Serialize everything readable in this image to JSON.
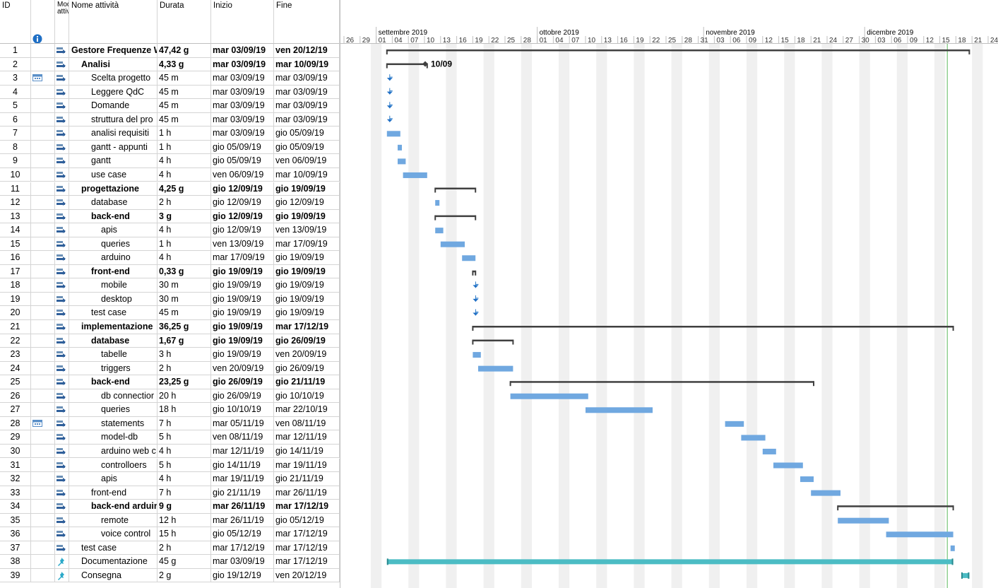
{
  "columns": {
    "id": "ID",
    "mode": "Mod attiv",
    "name": "Nome attività",
    "duration": "Durata",
    "start": "Inizio",
    "end": "Fine"
  },
  "timeline": {
    "months": [
      "settembre 2019",
      "ottobre 2019",
      "novembre 2019",
      "dicembre 2019"
    ],
    "ticks": [
      "26",
      "29",
      "01",
      "04",
      "07",
      "10",
      "13",
      "16",
      "19",
      "22",
      "25",
      "28",
      "01",
      "04",
      "07",
      "10",
      "13",
      "16",
      "19",
      "22",
      "25",
      "28",
      "31",
      "03",
      "06",
      "09",
      "12",
      "15",
      "18",
      "21",
      "24",
      "27",
      "30",
      "03",
      "06",
      "09",
      "12",
      "15",
      "18",
      "21",
      "24"
    ],
    "milestone_label": "10/09"
  },
  "colors": {
    "task_bar": "#70a8e0",
    "summary_bar": "#404040",
    "manual_bar": "#4cbcc4",
    "today_line": "#5cb85c",
    "weekend_shade": "#f0f0f0"
  },
  "tasks": [
    {
      "id": "1",
      "name": "Gestore Frequenze W",
      "dur": "47,42 g",
      "start": "mar 03/09/19",
      "end": "ven 20/12/19",
      "bold": true,
      "indent": 0,
      "icon": "auto-task-icon",
      "info": ""
    },
    {
      "id": "2",
      "name": "Analisi",
      "dur": "4,33 g",
      "start": "mar 03/09/19",
      "end": "mar 10/09/19",
      "bold": true,
      "indent": 1,
      "icon": "auto-task-icon",
      "info": ""
    },
    {
      "id": "3",
      "name": "Scelta progetto",
      "dur": "45 m",
      "start": "mar 03/09/19",
      "end": "mar 03/09/19",
      "bold": false,
      "indent": 2,
      "icon": "auto-task-icon",
      "info": "calendar-icon"
    },
    {
      "id": "4",
      "name": "Leggere QdC",
      "dur": "45 m",
      "start": "mar 03/09/19",
      "end": "mar 03/09/19",
      "bold": false,
      "indent": 2,
      "icon": "auto-task-icon",
      "info": ""
    },
    {
      "id": "5",
      "name": "Domande",
      "dur": "45 m",
      "start": "mar 03/09/19",
      "end": "mar 03/09/19",
      "bold": false,
      "indent": 2,
      "icon": "auto-task-icon",
      "info": ""
    },
    {
      "id": "6",
      "name": "struttura del pro",
      "dur": "45 m",
      "start": "mar 03/09/19",
      "end": "mar 03/09/19",
      "bold": false,
      "indent": 2,
      "icon": "auto-task-icon",
      "info": ""
    },
    {
      "id": "7",
      "name": "analisi requisiti",
      "dur": "1 h",
      "start": "mar 03/09/19",
      "end": "gio 05/09/19",
      "bold": false,
      "indent": 2,
      "icon": "auto-task-icon",
      "info": ""
    },
    {
      "id": "8",
      "name": "gantt - appunti",
      "dur": "1 h",
      "start": "gio 05/09/19",
      "end": "gio 05/09/19",
      "bold": false,
      "indent": 2,
      "icon": "auto-task-icon",
      "info": ""
    },
    {
      "id": "9",
      "name": "gantt",
      "dur": "4 h",
      "start": "gio 05/09/19",
      "end": "ven 06/09/19",
      "bold": false,
      "indent": 2,
      "icon": "auto-task-icon",
      "info": ""
    },
    {
      "id": "10",
      "name": "use case",
      "dur": "4 h",
      "start": "ven 06/09/19",
      "end": "mar 10/09/19",
      "bold": false,
      "indent": 2,
      "icon": "auto-task-icon",
      "info": ""
    },
    {
      "id": "11",
      "name": "progettazione",
      "dur": "4,25 g",
      "start": "gio 12/09/19",
      "end": "gio 19/09/19",
      "bold": true,
      "indent": 1,
      "icon": "auto-task-icon",
      "info": ""
    },
    {
      "id": "12",
      "name": "database",
      "dur": "2 h",
      "start": "gio 12/09/19",
      "end": "gio 12/09/19",
      "bold": false,
      "indent": 2,
      "icon": "auto-task-icon",
      "info": ""
    },
    {
      "id": "13",
      "name": "back-end",
      "dur": "3 g",
      "start": "gio 12/09/19",
      "end": "gio 19/09/19",
      "bold": true,
      "indent": 2,
      "icon": "auto-task-icon",
      "info": ""
    },
    {
      "id": "14",
      "name": "apis",
      "dur": "4 h",
      "start": "gio 12/09/19",
      "end": "ven 13/09/19",
      "bold": false,
      "indent": 3,
      "icon": "auto-task-icon",
      "info": ""
    },
    {
      "id": "15",
      "name": "queries",
      "dur": "1 h",
      "start": "ven 13/09/19",
      "end": "mar 17/09/19",
      "bold": false,
      "indent": 3,
      "icon": "auto-task-icon",
      "info": ""
    },
    {
      "id": "16",
      "name": "arduino",
      "dur": "4 h",
      "start": "mar 17/09/19",
      "end": "gio 19/09/19",
      "bold": false,
      "indent": 3,
      "icon": "auto-task-icon",
      "info": ""
    },
    {
      "id": "17",
      "name": "front-end",
      "dur": "0,33 g",
      "start": "gio 19/09/19",
      "end": "gio 19/09/19",
      "bold": true,
      "indent": 2,
      "icon": "auto-task-icon",
      "info": ""
    },
    {
      "id": "18",
      "name": "mobile",
      "dur": "30 m",
      "start": "gio 19/09/19",
      "end": "gio 19/09/19",
      "bold": false,
      "indent": 3,
      "icon": "auto-task-icon",
      "info": ""
    },
    {
      "id": "19",
      "name": "desktop",
      "dur": "30 m",
      "start": "gio 19/09/19",
      "end": "gio 19/09/19",
      "bold": false,
      "indent": 3,
      "icon": "auto-task-icon",
      "info": ""
    },
    {
      "id": "20",
      "name": "test case",
      "dur": "45 m",
      "start": "gio 19/09/19",
      "end": "gio 19/09/19",
      "bold": false,
      "indent": 2,
      "icon": "auto-task-icon",
      "info": ""
    },
    {
      "id": "21",
      "name": "implementazione",
      "dur": "36,25 g",
      "start": "gio 19/09/19",
      "end": "mar 17/12/19",
      "bold": true,
      "indent": 1,
      "icon": "auto-task-icon",
      "info": ""
    },
    {
      "id": "22",
      "name": "database",
      "dur": "1,67 g",
      "start": "gio 19/09/19",
      "end": "gio 26/09/19",
      "bold": true,
      "indent": 2,
      "icon": "auto-task-icon",
      "info": ""
    },
    {
      "id": "23",
      "name": "tabelle",
      "dur": "3 h",
      "start": "gio 19/09/19",
      "end": "ven 20/09/19",
      "bold": false,
      "indent": 3,
      "icon": "auto-task-icon",
      "info": ""
    },
    {
      "id": "24",
      "name": "triggers",
      "dur": "2 h",
      "start": "ven 20/09/19",
      "end": "gio 26/09/19",
      "bold": false,
      "indent": 3,
      "icon": "auto-task-icon",
      "info": ""
    },
    {
      "id": "25",
      "name": "back-end",
      "dur": "23,25 g",
      "start": "gio 26/09/19",
      "end": "gio 21/11/19",
      "bold": true,
      "indent": 2,
      "icon": "auto-task-icon",
      "info": ""
    },
    {
      "id": "26",
      "name": "db connectior",
      "dur": "20 h",
      "start": "gio 26/09/19",
      "end": "gio 10/10/19",
      "bold": false,
      "indent": 3,
      "icon": "auto-task-icon",
      "info": ""
    },
    {
      "id": "27",
      "name": "queries",
      "dur": "18 h",
      "start": "gio 10/10/19",
      "end": "mar 22/10/19",
      "bold": false,
      "indent": 3,
      "icon": "auto-task-icon",
      "info": ""
    },
    {
      "id": "28",
      "name": "statements",
      "dur": "7 h",
      "start": "mar 05/11/19",
      "end": "ven 08/11/19",
      "bold": false,
      "indent": 3,
      "icon": "auto-task-icon",
      "info": "calendar-icon"
    },
    {
      "id": "29",
      "name": "model-db",
      "dur": "5 h",
      "start": "ven 08/11/19",
      "end": "mar 12/11/19",
      "bold": false,
      "indent": 3,
      "icon": "auto-task-icon",
      "info": ""
    },
    {
      "id": "30",
      "name": "arduino web c",
      "dur": "4 h",
      "start": "mar 12/11/19",
      "end": "gio 14/11/19",
      "bold": false,
      "indent": 3,
      "icon": "auto-task-icon",
      "info": ""
    },
    {
      "id": "31",
      "name": "controlloers",
      "dur": "5 h",
      "start": "gio 14/11/19",
      "end": "mar 19/11/19",
      "bold": false,
      "indent": 3,
      "icon": "auto-task-icon",
      "info": ""
    },
    {
      "id": "32",
      "name": "apis",
      "dur": "4 h",
      "start": "mar 19/11/19",
      "end": "gio 21/11/19",
      "bold": false,
      "indent": 3,
      "icon": "auto-task-icon",
      "info": ""
    },
    {
      "id": "33",
      "name": "front-end",
      "dur": "7 h",
      "start": "gio 21/11/19",
      "end": "mar 26/11/19",
      "bold": false,
      "indent": 2,
      "icon": "auto-task-icon",
      "info": ""
    },
    {
      "id": "34",
      "name": "back-end arduin",
      "dur": "9 g",
      "start": "mar 26/11/19",
      "end": "mar 17/12/19",
      "bold": true,
      "indent": 2,
      "icon": "auto-task-icon",
      "info": ""
    },
    {
      "id": "35",
      "name": "remote",
      "dur": "12 h",
      "start": "mar 26/11/19",
      "end": "gio 05/12/19",
      "bold": false,
      "indent": 3,
      "icon": "auto-task-icon",
      "info": ""
    },
    {
      "id": "36",
      "name": "voice control",
      "dur": "15 h",
      "start": "gio 05/12/19",
      "end": "mar 17/12/19",
      "bold": false,
      "indent": 3,
      "icon": "auto-task-icon",
      "info": ""
    },
    {
      "id": "37",
      "name": "test case",
      "dur": "2 h",
      "start": "mar 17/12/19",
      "end": "mar 17/12/19",
      "bold": false,
      "indent": 1,
      "icon": "auto-task-icon",
      "info": ""
    },
    {
      "id": "38",
      "name": "Documentazione",
      "dur": "45 g",
      "start": "mar 03/09/19",
      "end": "mar 17/12/19",
      "bold": false,
      "indent": 1,
      "icon": "pin-icon",
      "info": ""
    },
    {
      "id": "39",
      "name": "Consegna",
      "dur": "2 g",
      "start": "gio 19/12/19",
      "end": "ven 20/12/19",
      "bold": false,
      "indent": 1,
      "icon": "pin-icon",
      "info": ""
    }
  ]
}
